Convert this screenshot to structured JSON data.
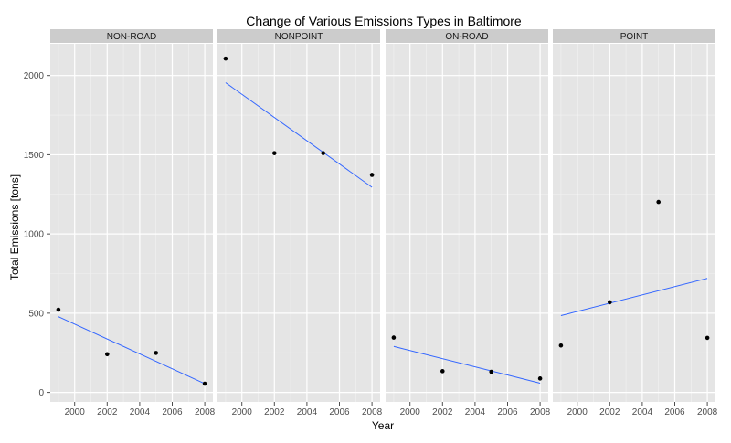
{
  "chart_data": {
    "type": "scatter",
    "title": "Change of Various Emissions Types in Baltimore",
    "xlabel": "Year",
    "ylabel": "Total Emissions [tons]",
    "xlim": [
      1998.5,
      2008.5
    ],
    "ylim": [
      -60,
      2200
    ],
    "x_ticks": [
      2000,
      2002,
      2004,
      2006,
      2008
    ],
    "y_ticks": [
      0,
      500,
      1000,
      1500,
      2000
    ],
    "grid": true,
    "facets": [
      {
        "name": "NON-ROAD",
        "points": [
          [
            1999,
            522
          ],
          [
            2002,
            241
          ],
          [
            2005,
            249
          ],
          [
            2008,
            55
          ]
        ],
        "trend": [
          [
            1999,
            478
          ],
          [
            2008,
            55
          ]
        ]
      },
      {
        "name": "NONPOINT",
        "points": [
          [
            1999,
            2107
          ],
          [
            2002,
            1510
          ],
          [
            2005,
            1510
          ],
          [
            2008,
            1373
          ]
        ],
        "trend": [
          [
            1999,
            1955
          ],
          [
            2008,
            1295
          ]
        ]
      },
      {
        "name": "ON-ROAD",
        "points": [
          [
            1999,
            346
          ],
          [
            2002,
            134
          ],
          [
            2005,
            130
          ],
          [
            2008,
            88
          ]
        ],
        "trend": [
          [
            1999,
            290
          ],
          [
            2008,
            58
          ]
        ]
      },
      {
        "name": "POINT",
        "points": [
          [
            1999,
            296
          ],
          [
            2002,
            569
          ],
          [
            2005,
            1202
          ],
          [
            2008,
            344
          ]
        ],
        "trend": [
          [
            1999,
            485
          ],
          [
            2008,
            720
          ]
        ]
      }
    ],
    "colors": {
      "panel_background": "#e5e5e5",
      "strip_background": "#cccccc",
      "grid_major": "#ffffff",
      "grid_minor": "#f2f2f2",
      "points": "#000000",
      "trend_line": "#3366ff"
    }
  }
}
